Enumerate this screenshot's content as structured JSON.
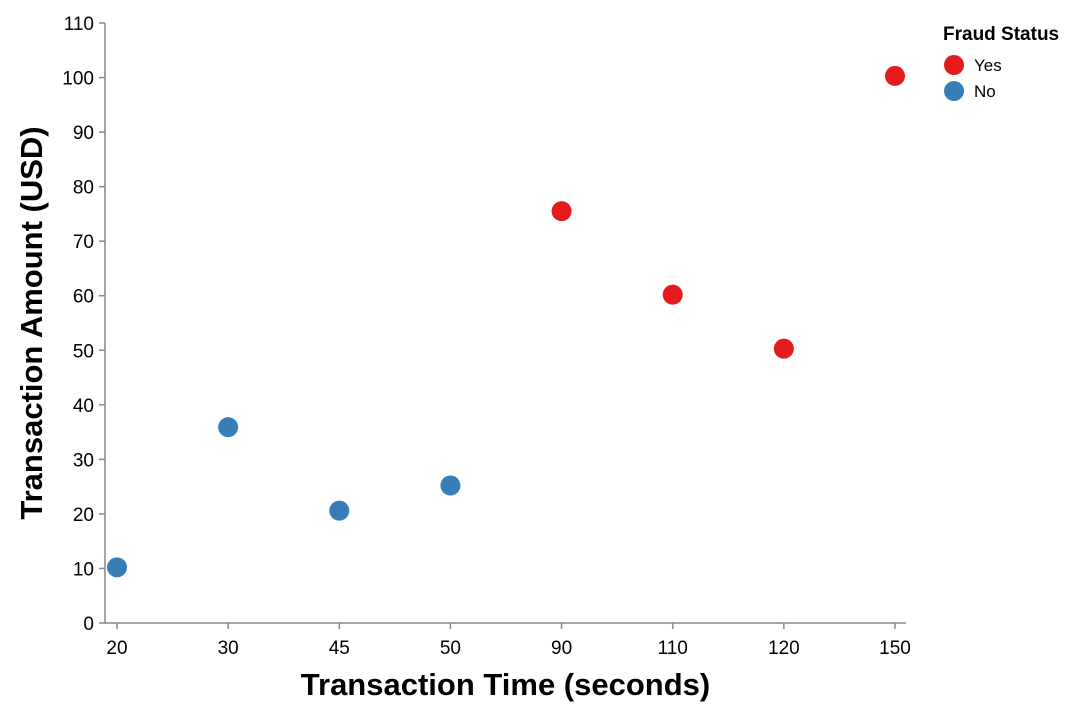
{
  "chart_data": {
    "type": "scatter",
    "x_scale": "point",
    "x_categories": [
      20,
      30,
      45,
      50,
      90,
      110,
      120,
      150
    ],
    "xlabel": "Transaction Time (seconds)",
    "ylabel": "Transaction Amount (USD)",
    "ylim": [
      0,
      110
    ],
    "y_ticks": [
      0,
      10,
      20,
      30,
      40,
      50,
      60,
      70,
      80,
      90,
      100,
      110
    ],
    "grid": false,
    "legend": {
      "title": "Fraud Status",
      "placement": "top-right",
      "entries": [
        {
          "label": "Yes",
          "color": "#e41a1c"
        },
        {
          "label": "No",
          "color": "#377eb8"
        }
      ]
    },
    "series": [
      {
        "name": "Yes",
        "color": "#e41a1c",
        "points": [
          {
            "x": 90,
            "y": 75.5
          },
          {
            "x": 110,
            "y": 60.2
          },
          {
            "x": 120,
            "y": 50.3
          },
          {
            "x": 150,
            "y": 100.3
          }
        ]
      },
      {
        "name": "No",
        "color": "#377eb8",
        "points": [
          {
            "x": 20,
            "y": 10.2
          },
          {
            "x": 30,
            "y": 35.9
          },
          {
            "x": 45,
            "y": 20.6
          },
          {
            "x": 50,
            "y": 25.2
          }
        ]
      }
    ]
  }
}
